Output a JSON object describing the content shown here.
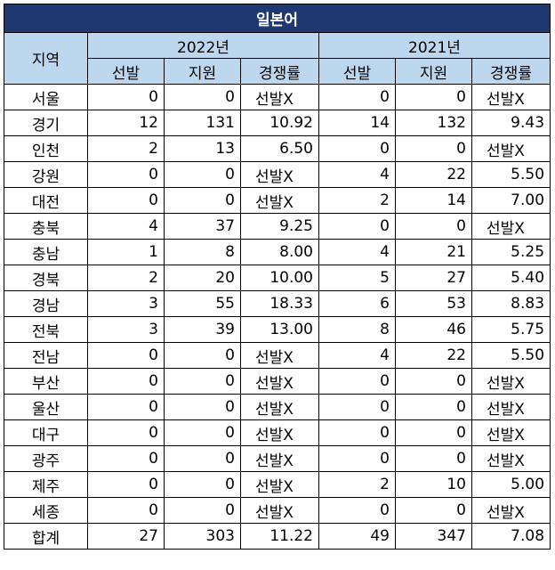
{
  "title": "일본어",
  "header": {
    "region": "지역",
    "year_a": "2022년",
    "year_b": "2021년",
    "cols": [
      "선발",
      "지원",
      "경쟁률",
      "선발",
      "지원",
      "경쟁률"
    ]
  },
  "rows": [
    {
      "region": "서울",
      "a_sel": "0",
      "a_app": "0",
      "a_rate": "선발X",
      "b_sel": "0",
      "b_app": "0",
      "b_rate": "선발X"
    },
    {
      "region": "경기",
      "a_sel": "12",
      "a_app": "131",
      "a_rate": "10.92",
      "b_sel": "14",
      "b_app": "132",
      "b_rate": "9.43"
    },
    {
      "region": "인천",
      "a_sel": "2",
      "a_app": "13",
      "a_rate": "6.50",
      "b_sel": "0",
      "b_app": "0",
      "b_rate": "선발X"
    },
    {
      "region": "강원",
      "a_sel": "0",
      "a_app": "0",
      "a_rate": "선발X",
      "b_sel": "4",
      "b_app": "22",
      "b_rate": "5.50"
    },
    {
      "region": "대전",
      "a_sel": "0",
      "a_app": "0",
      "a_rate": "선발X",
      "b_sel": "2",
      "b_app": "14",
      "b_rate": "7.00"
    },
    {
      "region": "충북",
      "a_sel": "4",
      "a_app": "37",
      "a_rate": "9.25",
      "b_sel": "0",
      "b_app": "0",
      "b_rate": "선발X"
    },
    {
      "region": "충남",
      "a_sel": "1",
      "a_app": "8",
      "a_rate": "8.00",
      "b_sel": "4",
      "b_app": "21",
      "b_rate": "5.25"
    },
    {
      "region": "경북",
      "a_sel": "2",
      "a_app": "20",
      "a_rate": "10.00",
      "b_sel": "5",
      "b_app": "27",
      "b_rate": "5.40"
    },
    {
      "region": "경남",
      "a_sel": "3",
      "a_app": "55",
      "a_rate": "18.33",
      "b_sel": "6",
      "b_app": "53",
      "b_rate": "8.83"
    },
    {
      "region": "전북",
      "a_sel": "3",
      "a_app": "39",
      "a_rate": "13.00",
      "b_sel": "8",
      "b_app": "46",
      "b_rate": "5.75"
    },
    {
      "region": "전남",
      "a_sel": "0",
      "a_app": "0",
      "a_rate": "선발X",
      "b_sel": "4",
      "b_app": "22",
      "b_rate": "5.50"
    },
    {
      "region": "부산",
      "a_sel": "0",
      "a_app": "0",
      "a_rate": "선발X",
      "b_sel": "0",
      "b_app": "0",
      "b_rate": "선발X"
    },
    {
      "region": "울산",
      "a_sel": "0",
      "a_app": "0",
      "a_rate": "선발X",
      "b_sel": "0",
      "b_app": "0",
      "b_rate": "선발X"
    },
    {
      "region": "대구",
      "a_sel": "0",
      "a_app": "0",
      "a_rate": "선발X",
      "b_sel": "0",
      "b_app": "0",
      "b_rate": "선발X"
    },
    {
      "region": "광주",
      "a_sel": "0",
      "a_app": "0",
      "a_rate": "선발X",
      "b_sel": "0",
      "b_app": "0",
      "b_rate": "선발X"
    },
    {
      "region": "제주",
      "a_sel": "0",
      "a_app": "0",
      "a_rate": "선발X",
      "b_sel": "2",
      "b_app": "10",
      "b_rate": "5.00"
    },
    {
      "region": "세종",
      "a_sel": "0",
      "a_app": "0",
      "a_rate": "선발X",
      "b_sel": "0",
      "b_app": "0",
      "b_rate": "선발X"
    },
    {
      "region": "합계",
      "a_sel": "27",
      "a_app": "303",
      "a_rate": "11.22",
      "b_sel": "49",
      "b_app": "347",
      "b_rate": "7.08"
    }
  ],
  "colors": {
    "title_bg": "#1f3871",
    "header_bg": "#bdd7ee"
  }
}
